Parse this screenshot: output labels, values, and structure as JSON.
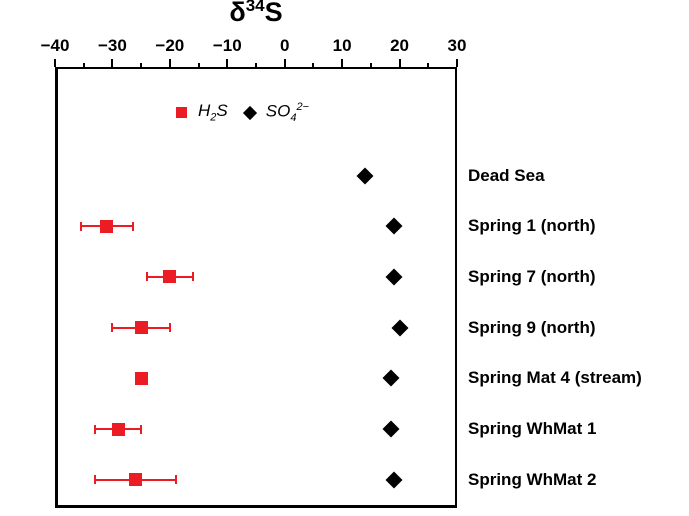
{
  "title": {
    "base": "δ",
    "sup": "34",
    "rest": "S"
  },
  "legend": {
    "h2s": {
      "base": "H",
      "sub": "2",
      "rest": "S"
    },
    "so4": {
      "base": "SO",
      "sub": "4",
      "sup": "2−"
    }
  },
  "colors": {
    "h2s": "#ec1c24",
    "so4": "#000000",
    "axis": "#000000",
    "background": "#ffffff"
  },
  "chart_data": {
    "type": "scatter",
    "title": "δ³⁴S",
    "xlabel": "",
    "ylabel": "",
    "xlim": [
      -40,
      30
    ],
    "x_major_step": 10,
    "x_minor_step": 5,
    "x_tick_labels": [
      "−40",
      "−30",
      "−20",
      "−10",
      "0",
      "10",
      "20",
      "30"
    ],
    "grid": false,
    "legend_position": "top-inside",
    "categories": [
      "Dead Sea",
      "Spring 1 (north)",
      "Spring 7 (north)",
      "Spring 9 (north)",
      "Spring Mat 4 (stream)",
      "Spring WhMat 1",
      "Spring WhMat 2"
    ],
    "series": [
      {
        "name": "H₂S",
        "marker": "square",
        "color": "#ec1c24",
        "values": [
          null,
          -31,
          -20,
          -25,
          -25,
          -29,
          -26
        ],
        "errors": [
          null,
          4.5,
          4,
          5,
          0,
          4,
          7
        ]
      },
      {
        "name": "SO₄²⁻",
        "marker": "diamond",
        "color": "#000000",
        "values": [
          14,
          19,
          19,
          20,
          18.5,
          18.5,
          19
        ],
        "errors": [
          null,
          null,
          null,
          null,
          null,
          null,
          null
        ]
      }
    ]
  }
}
